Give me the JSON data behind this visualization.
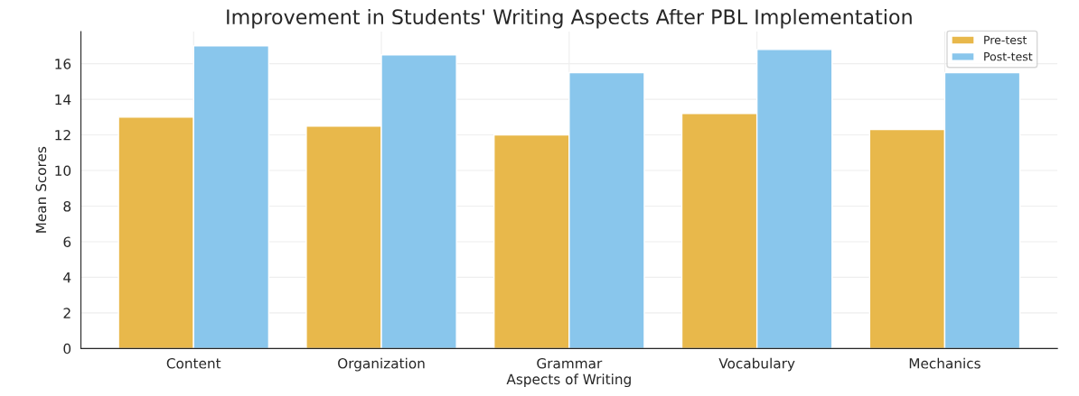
{
  "chart_data": {
    "type": "bar",
    "title": "Improvement in Students' Writing Aspects After PBL Implementation",
    "xlabel": "Aspects of Writing",
    "ylabel": "Mean Scores",
    "categories": [
      "Content",
      "Organization",
      "Grammar",
      "Vocabulary",
      "Mechanics"
    ],
    "series": [
      {
        "name": "Pre-test",
        "color": "#e8b84b",
        "values": [
          13,
          12.5,
          12,
          13.2,
          12.3
        ]
      },
      {
        "name": "Post-test",
        "color": "#89c6ec",
        "values": [
          17,
          16.5,
          15.5,
          16.8,
          15.5
        ]
      }
    ],
    "ylim": [
      0,
      17.8
    ],
    "yticks": [
      0,
      2,
      4,
      6,
      8,
      10,
      12,
      14,
      16
    ],
    "grid": true,
    "legend": "top right"
  }
}
